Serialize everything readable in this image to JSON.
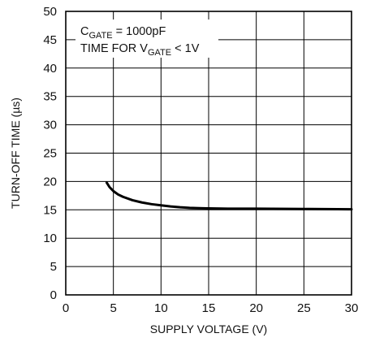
{
  "chart_data": {
    "type": "line",
    "xlabel": "SUPPLY VOLTAGE (V)",
    "ylabel": "TURN-OFF TIME (µs)",
    "xlim": [
      0,
      30
    ],
    "ylim": [
      0,
      50
    ],
    "x_ticks": [
      "0",
      "5",
      "10",
      "15",
      "20",
      "25",
      "30"
    ],
    "y_ticks": [
      "0",
      "5",
      "10",
      "15",
      "20",
      "25",
      "30",
      "35",
      "40",
      "45",
      "50"
    ],
    "grid": true,
    "annotation": {
      "line1": {
        "main": "C",
        "sub": "GATE",
        "rest": " = 1000pF"
      },
      "line2": {
        "main": "TIME FOR V",
        "sub": "GATE",
        "rest": " < 1V"
      }
    },
    "series": [
      {
        "color": "#000000",
        "x": [
          4.3,
          4.6,
          5,
          5.5,
          6,
          7,
          8,
          9,
          10,
          11,
          12,
          13,
          14,
          15,
          17,
          20,
          25,
          30
        ],
        "y": [
          19.8,
          19.0,
          18.3,
          17.7,
          17.3,
          16.7,
          16.3,
          16.0,
          15.8,
          15.6,
          15.45,
          15.35,
          15.3,
          15.25,
          15.2,
          15.2,
          15.15,
          15.1
        ]
      }
    ]
  }
}
